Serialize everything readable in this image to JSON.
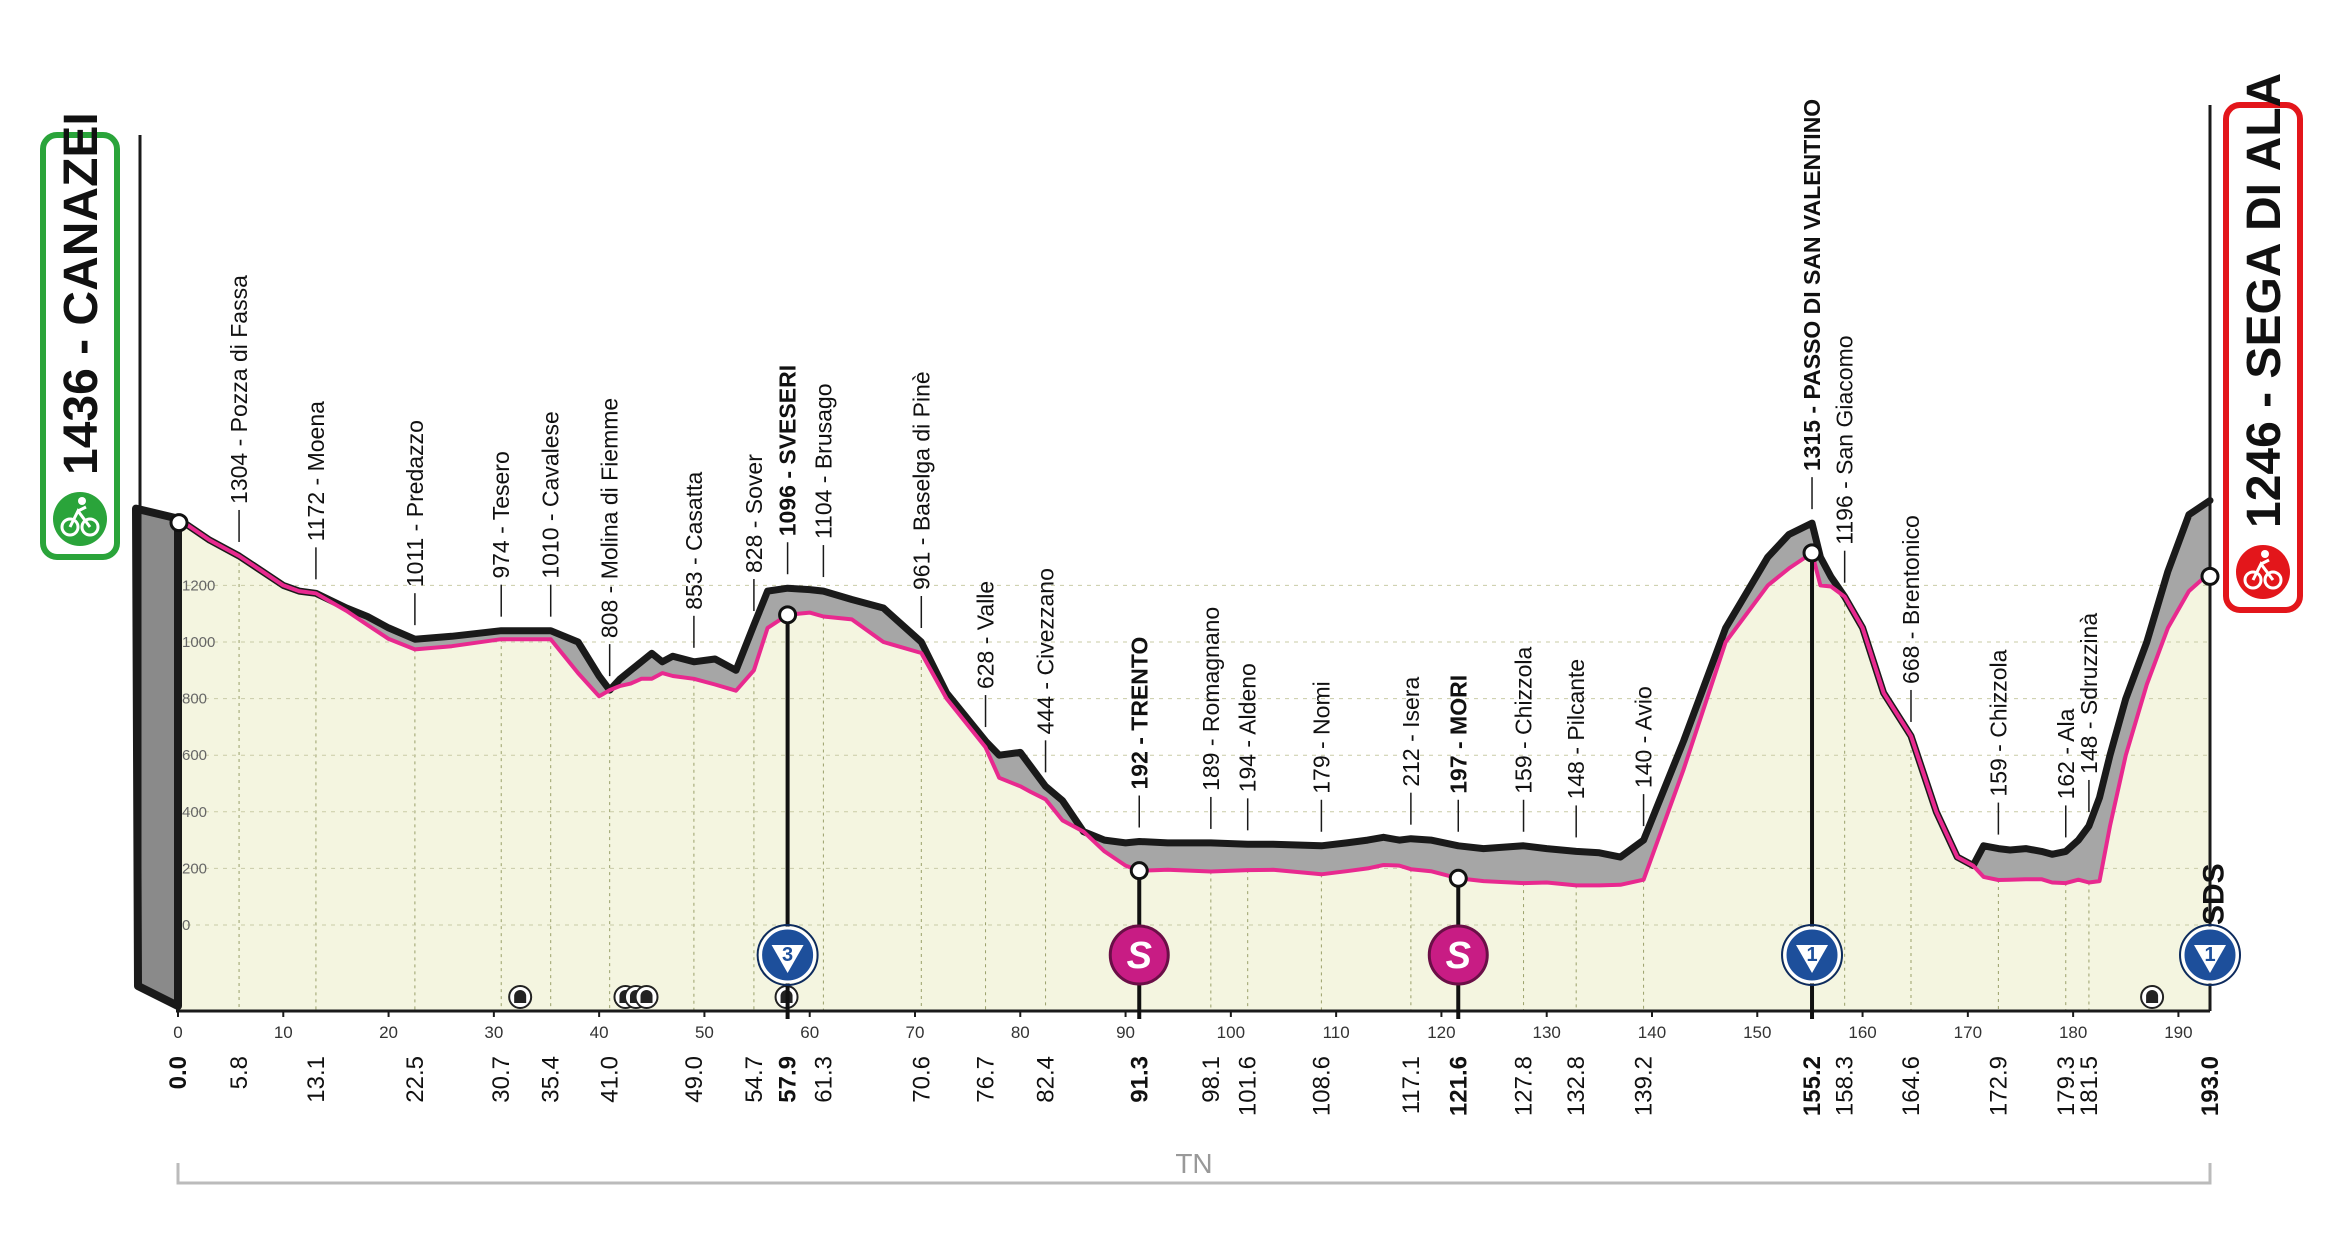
{
  "chart_data": {
    "type": "area",
    "title": "",
    "xlabel": "",
    "ylabel": "",
    "xlim": [
      0,
      193.0
    ],
    "ylim": [
      0,
      1500
    ],
    "x_ticks": [
      0,
      10,
      20,
      30,
      40,
      50,
      60,
      70,
      80,
      90,
      100,
      110,
      120,
      130,
      140,
      150,
      160,
      170,
      180,
      190
    ],
    "y_ticks": [
      0,
      200,
      400,
      600,
      800,
      1000,
      1200
    ],
    "region_label": "TN",
    "start": {
      "name": "1436 - CANAZEI",
      "altitude": 1436,
      "km": 0.0
    },
    "finish": {
      "name": "1246 - SEGA DI ALA",
      "altitude": 1246,
      "km": 193.0
    },
    "profile": {
      "x": [
        0,
        3,
        5.8,
        8,
        10,
        11.5,
        13.1,
        16,
        18,
        20,
        22.5,
        26,
        30.7,
        35.4,
        38,
        40,
        41,
        42,
        43,
        44,
        45,
        46,
        47,
        49,
        51,
        53,
        54.7,
        56,
        57.9,
        60,
        61.3,
        64,
        67,
        70.6,
        73,
        76.7,
        78,
        80,
        81,
        82.4,
        84,
        86,
        88,
        90,
        91.3,
        94,
        98.1,
        101.6,
        104,
        108.6,
        111,
        113,
        114.5,
        116,
        117.1,
        119,
        121.6,
        124,
        127.8,
        130,
        132.8,
        135,
        137,
        139.2,
        143,
        147,
        151,
        153,
        155.2,
        156,
        157,
        158.3,
        160,
        162,
        164.6,
        167,
        169,
        170.5,
        171.5,
        172.9,
        174,
        175.5,
        177,
        178,
        179.3,
        180.5,
        181.5,
        182.5,
        183.5,
        185,
        187,
        189,
        191,
        193.0
      ],
      "y": [
        1436,
        1360,
        1304,
        1250,
        1200,
        1180,
        1172,
        1110,
        1060,
        1011,
        974,
        985,
        1010,
        1010,
        890,
        808,
        830,
        845,
        853,
        870,
        870,
        890,
        880,
        870,
        850,
        828,
        900,
        1050,
        1096,
        1104,
        1090,
        1080,
        1000,
        961,
        800,
        628,
        520,
        490,
        470,
        444,
        370,
        330,
        260,
        210,
        192,
        195,
        189,
        194,
        195,
        179,
        190,
        200,
        212,
        210,
        197,
        190,
        165,
        155,
        148,
        150,
        140,
        140,
        142,
        160,
        550,
        1000,
        1200,
        1260,
        1315,
        1200,
        1196,
        1160,
        1050,
        820,
        668,
        400,
        240,
        210,
        170,
        159,
        160,
        162,
        162,
        150,
        148,
        160,
        150,
        155,
        350,
        600,
        850,
        1050,
        1180,
        1246
      ]
    },
    "road_profile": {
      "x": [
        0,
        3,
        5.8,
        8,
        10,
        11.5,
        13.1,
        16,
        18,
        20,
        22.5,
        26,
        30.7,
        35.4,
        38,
        40,
        41,
        42,
        43,
        44,
        45,
        46,
        47,
        49,
        51,
        53,
        54.7,
        56,
        57.9,
        60,
        61.3,
        64,
        67,
        70.6,
        73,
        76.7,
        78,
        80,
        81,
        82.4,
        84,
        86,
        88,
        90,
        91.3,
        94,
        98.1,
        101.6,
        104,
        108.6,
        111,
        113,
        114.5,
        116,
        117.1,
        119,
        121.6,
        124,
        127.8,
        130,
        132.8,
        135,
        137,
        139.2,
        143,
        147,
        151,
        153,
        155.2,
        156,
        157,
        158.3,
        160,
        162,
        164.6,
        167,
        169,
        170.5,
        171.5,
        172.9,
        174,
        175.5,
        177,
        178,
        179.3,
        180.5,
        181.5,
        182.5,
        183.5,
        185,
        187,
        189,
        191,
        193.0
      ],
      "y": [
        1436,
        1360,
        1304,
        1250,
        1200,
        1180,
        1172,
        1120,
        1090,
        1050,
        1010,
        1020,
        1040,
        1040,
        1000,
        880,
        830,
        870,
        900,
        930,
        960,
        930,
        950,
        930,
        940,
        900,
        1060,
        1180,
        1190,
        1185,
        1180,
        1150,
        1120,
        1000,
        820,
        650,
        600,
        610,
        560,
        490,
        440,
        330,
        300,
        290,
        295,
        290,
        290,
        285,
        285,
        280,
        290,
        300,
        310,
        300,
        305,
        300,
        280,
        270,
        280,
        270,
        260,
        255,
        240,
        300,
        650,
        1050,
        1300,
        1380,
        1420,
        1300,
        1230,
        1160,
        1050,
        820,
        668,
        400,
        240,
        210,
        280,
        270,
        265,
        270,
        260,
        250,
        260,
        300,
        350,
        450,
        600,
        800,
        1000,
        1250,
        1450,
        1500
      ]
    },
    "climb_markers": [
      {
        "km": 57.9,
        "label": "3"
      },
      {
        "km": 155.2,
        "label": "1"
      },
      {
        "km": 193.0,
        "label": "1"
      }
    ],
    "sprint_markers": [
      {
        "km": 91.3,
        "label": "S"
      },
      {
        "km": 121.6,
        "label": "S"
      }
    ],
    "tunnel_markers": [
      32.5,
      42.5,
      43.5,
      44.5,
      57.8,
      187.5
    ],
    "feed_zone": {
      "km": 190,
      "label": "SDS"
    },
    "km_labels": [
      {
        "km": 0.0,
        "text": "0.0",
        "bold": true
      },
      {
        "km": 5.8,
        "text": "5.8",
        "bold": false
      },
      {
        "km": 13.1,
        "text": "13.1",
        "bold": false
      },
      {
        "km": 22.5,
        "text": "22.5",
        "bold": false
      },
      {
        "km": 30.7,
        "text": "30.7",
        "bold": false
      },
      {
        "km": 35.4,
        "text": "35.4",
        "bold": false
      },
      {
        "km": 41.0,
        "text": "41.0",
        "bold": false
      },
      {
        "km": 49.0,
        "text": "49.0",
        "bold": false
      },
      {
        "km": 54.7,
        "text": "54.7",
        "bold": false
      },
      {
        "km": 57.9,
        "text": "57.9",
        "bold": true
      },
      {
        "km": 61.3,
        "text": "61.3",
        "bold": false
      },
      {
        "km": 70.6,
        "text": "70.6",
        "bold": false
      },
      {
        "km": 76.7,
        "text": "76.7",
        "bold": false
      },
      {
        "km": 82.4,
        "text": "82.4",
        "bold": false
      },
      {
        "km": 91.3,
        "text": "91.3",
        "bold": true
      },
      {
        "km": 98.1,
        "text": "98.1",
        "bold": false
      },
      {
        "km": 101.6,
        "text": "101.6",
        "bold": false
      },
      {
        "km": 108.6,
        "text": "108.6",
        "bold": false
      },
      {
        "km": 117.1,
        "text": "117.1",
        "bold": false
      },
      {
        "km": 121.6,
        "text": "121.6",
        "bold": true
      },
      {
        "km": 127.8,
        "text": "127.8",
        "bold": false
      },
      {
        "km": 132.8,
        "text": "132.8",
        "bold": false
      },
      {
        "km": 139.2,
        "text": "139.2",
        "bold": false
      },
      {
        "km": 155.2,
        "text": "155.2",
        "bold": true
      },
      {
        "km": 158.3,
        "text": "158.3",
        "bold": false
      },
      {
        "km": 164.6,
        "text": "164.6",
        "bold": false
      },
      {
        "km": 172.9,
        "text": "172.9",
        "bold": false
      },
      {
        "km": 179.3,
        "text": "179.3",
        "bold": false
      },
      {
        "km": 181.5,
        "text": "181.5",
        "bold": false
      },
      {
        "km": 193.0,
        "text": "193.0",
        "bold": true
      }
    ],
    "places": [
      {
        "km": 5.8,
        "alt": 1304,
        "text": "1304 - Pozza di Fassa",
        "bold": false
      },
      {
        "km": 13.1,
        "alt": 1172,
        "text": "1172 - Moena",
        "bold": false
      },
      {
        "km": 22.5,
        "alt": 1011,
        "text": "1011 - Predazzo",
        "bold": false
      },
      {
        "km": 30.7,
        "alt": 974,
        "text": "974 - Tesero",
        "bold": false
      },
      {
        "km": 35.4,
        "alt": 1010,
        "text": "1010 - Cavalese",
        "bold": false
      },
      {
        "km": 41.0,
        "alt": 808,
        "text": "808 - Molina di Fiemme",
        "bold": false
      },
      {
        "km": 49.0,
        "alt": 853,
        "text": "853 - Casatta",
        "bold": false
      },
      {
        "km": 54.7,
        "alt": 828,
        "text": "828 - Sover",
        "bold": false
      },
      {
        "km": 57.9,
        "alt": 1096,
        "text": "1096 - SVESERI",
        "bold": true
      },
      {
        "km": 61.3,
        "alt": 1104,
        "text": "1104 - Brusago",
        "bold": false
      },
      {
        "km": 70.6,
        "alt": 961,
        "text": "961 - Baselga di Pinè",
        "bold": false
      },
      {
        "km": 76.7,
        "alt": 628,
        "text": "628 - Valle",
        "bold": false
      },
      {
        "km": 82.4,
        "alt": 444,
        "text": "444 - Civezzano",
        "bold": false
      },
      {
        "km": 91.3,
        "alt": 192,
        "text": "192 - TRENTO",
        "bold": true
      },
      {
        "km": 98.1,
        "alt": 189,
        "text": "189 - Romagnano",
        "bold": false
      },
      {
        "km": 101.6,
        "alt": 194,
        "text": "194 - Aldeno",
        "bold": false
      },
      {
        "km": 108.6,
        "alt": 179,
        "text": "179 - Nomi",
        "bold": false
      },
      {
        "km": 117.1,
        "alt": 212,
        "text": "212 - Isera",
        "bold": false
      },
      {
        "km": 121.6,
        "alt": 197,
        "text": "197 - MORI",
        "bold": true
      },
      {
        "km": 127.8,
        "alt": 159,
        "text": "159 - Chizzola",
        "bold": false
      },
      {
        "km": 132.8,
        "alt": 148,
        "text": "148 - Pilcante",
        "bold": false
      },
      {
        "km": 139.2,
        "alt": 140,
        "text": "140 - Avio",
        "bold": false
      },
      {
        "km": 155.2,
        "alt": 1315,
        "text": "1315 - PASSO DI SAN VALENTINO",
        "bold": true
      },
      {
        "km": 158.3,
        "alt": 1196,
        "text": "1196 - San Giacomo",
        "bold": false
      },
      {
        "km": 164.6,
        "alt": 668,
        "text": "668 - Brentonico",
        "bold": false
      },
      {
        "km": 172.9,
        "alt": 159,
        "text": "159 - Chizzola",
        "bold": false
      },
      {
        "km": 179.3,
        "alt": 162,
        "text": "162 - Ala",
        "bold": false
      },
      {
        "km": 181.5,
        "alt": 148,
        "text": "148 - Sdruzzinà",
        "bold": false
      }
    ],
    "colors": {
      "fill": "#f4f5e0",
      "road": "#a6a6a6",
      "profile_line": "#e8298f",
      "outline": "#1a1a1a",
      "start_badge": "#2aa43a",
      "finish_badge": "#e3161b",
      "climb_badge": "#1d4f9b",
      "sprint_badge": "#c81c84",
      "region_bracket": "#bbbbbb"
    }
  }
}
